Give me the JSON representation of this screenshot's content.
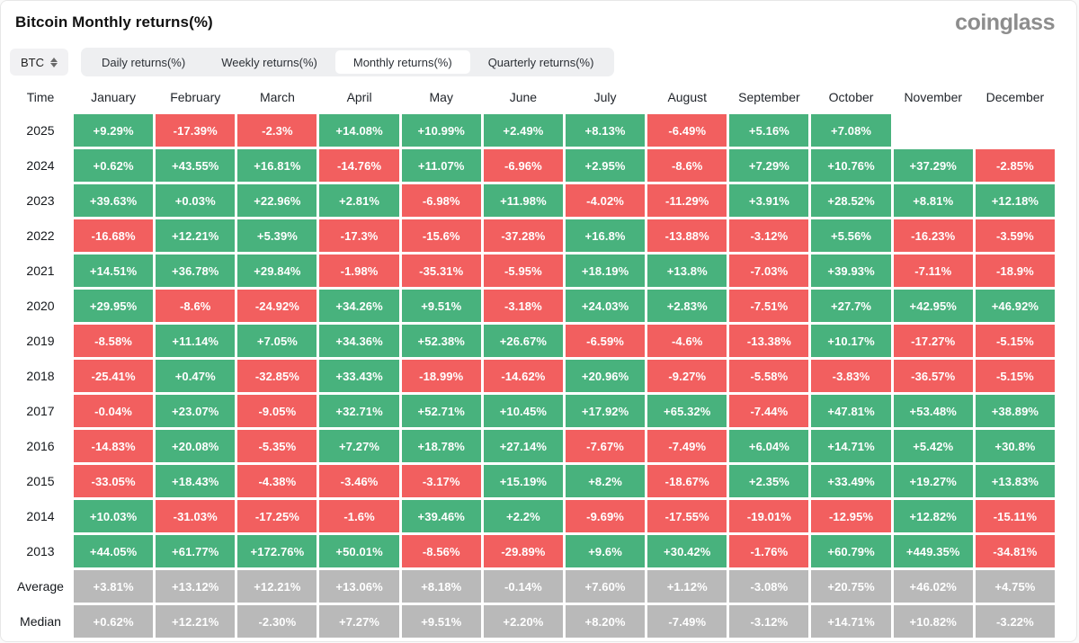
{
  "header": {
    "title": "Bitcoin Monthly returns(%)",
    "logo": "coinglass"
  },
  "controls": {
    "coin_selector": {
      "label": "BTC",
      "icon": "updown-chevron-icon"
    },
    "tabs": [
      {
        "label": "Daily returns(%)",
        "active": false
      },
      {
        "label": "Weekly returns(%)",
        "active": false
      },
      {
        "label": "Monthly returns(%)",
        "active": true
      },
      {
        "label": "Quarterly returns(%)",
        "active": false
      }
    ]
  },
  "colors": {
    "positive": "#48b27d",
    "negative": "#f25f5f",
    "neutral": "#b9b9b9"
  },
  "table": {
    "time_header": "Time",
    "columns": [
      "January",
      "February",
      "March",
      "April",
      "May",
      "June",
      "July",
      "August",
      "September",
      "October",
      "November",
      "December"
    ],
    "rows": [
      {
        "label": "2025",
        "summary": false,
        "cells": [
          "+9.29%",
          "-17.39%",
          "-2.3%",
          "+14.08%",
          "+10.99%",
          "+2.49%",
          "+8.13%",
          "-6.49%",
          "+5.16%",
          "+7.08%",
          null,
          null
        ]
      },
      {
        "label": "2024",
        "summary": false,
        "cells": [
          "+0.62%",
          "+43.55%",
          "+16.81%",
          "-14.76%",
          "+11.07%",
          "-6.96%",
          "+2.95%",
          "-8.6%",
          "+7.29%",
          "+10.76%",
          "+37.29%",
          "-2.85%"
        ]
      },
      {
        "label": "2023",
        "summary": false,
        "cells": [
          "+39.63%",
          "+0.03%",
          "+22.96%",
          "+2.81%",
          "-6.98%",
          "+11.98%",
          "-4.02%",
          "-11.29%",
          "+3.91%",
          "+28.52%",
          "+8.81%",
          "+12.18%"
        ]
      },
      {
        "label": "2022",
        "summary": false,
        "cells": [
          "-16.68%",
          "+12.21%",
          "+5.39%",
          "-17.3%",
          "-15.6%",
          "-37.28%",
          "+16.8%",
          "-13.88%",
          "-3.12%",
          "+5.56%",
          "-16.23%",
          "-3.59%"
        ]
      },
      {
        "label": "2021",
        "summary": false,
        "cells": [
          "+14.51%",
          "+36.78%",
          "+29.84%",
          "-1.98%",
          "-35.31%",
          "-5.95%",
          "+18.19%",
          "+13.8%",
          "-7.03%",
          "+39.93%",
          "-7.11%",
          "-18.9%"
        ]
      },
      {
        "label": "2020",
        "summary": false,
        "cells": [
          "+29.95%",
          "-8.6%",
          "-24.92%",
          "+34.26%",
          "+9.51%",
          "-3.18%",
          "+24.03%",
          "+2.83%",
          "-7.51%",
          "+27.7%",
          "+42.95%",
          "+46.92%"
        ]
      },
      {
        "label": "2019",
        "summary": false,
        "cells": [
          "-8.58%",
          "+11.14%",
          "+7.05%",
          "+34.36%",
          "+52.38%",
          "+26.67%",
          "-6.59%",
          "-4.6%",
          "-13.38%",
          "+10.17%",
          "-17.27%",
          "-5.15%"
        ]
      },
      {
        "label": "2018",
        "summary": false,
        "cells": [
          "-25.41%",
          "+0.47%",
          "-32.85%",
          "+33.43%",
          "-18.99%",
          "-14.62%",
          "+20.96%",
          "-9.27%",
          "-5.58%",
          "-3.83%",
          "-36.57%",
          "-5.15%"
        ]
      },
      {
        "label": "2017",
        "summary": false,
        "cells": [
          "-0.04%",
          "+23.07%",
          "-9.05%",
          "+32.71%",
          "+52.71%",
          "+10.45%",
          "+17.92%",
          "+65.32%",
          "-7.44%",
          "+47.81%",
          "+53.48%",
          "+38.89%"
        ]
      },
      {
        "label": "2016",
        "summary": false,
        "cells": [
          "-14.83%",
          "+20.08%",
          "-5.35%",
          "+7.27%",
          "+18.78%",
          "+27.14%",
          "-7.67%",
          "-7.49%",
          "+6.04%",
          "+14.71%",
          "+5.42%",
          "+30.8%"
        ]
      },
      {
        "label": "2015",
        "summary": false,
        "cells": [
          "-33.05%",
          "+18.43%",
          "-4.38%",
          "-3.46%",
          "-3.17%",
          "+15.19%",
          "+8.2%",
          "-18.67%",
          "+2.35%",
          "+33.49%",
          "+19.27%",
          "+13.83%"
        ]
      },
      {
        "label": "2014",
        "summary": false,
        "cells": [
          "+10.03%",
          "-31.03%",
          "-17.25%",
          "-1.6%",
          "+39.46%",
          "+2.2%",
          "-9.69%",
          "-17.55%",
          "-19.01%",
          "-12.95%",
          "+12.82%",
          "-15.11%"
        ]
      },
      {
        "label": "2013",
        "summary": false,
        "cells": [
          "+44.05%",
          "+61.77%",
          "+172.76%",
          "+50.01%",
          "-8.56%",
          "-29.89%",
          "+9.6%",
          "+30.42%",
          "-1.76%",
          "+60.79%",
          "+449.35%",
          "-34.81%"
        ]
      },
      {
        "label": "Average",
        "summary": true,
        "cells": [
          "+3.81%",
          "+13.12%",
          "+12.21%",
          "+13.06%",
          "+8.18%",
          "-0.14%",
          "+7.60%",
          "+1.12%",
          "-3.08%",
          "+20.75%",
          "+46.02%",
          "+4.75%"
        ]
      },
      {
        "label": "Median",
        "summary": true,
        "cells": [
          "+0.62%",
          "+12.21%",
          "-2.30%",
          "+7.27%",
          "+9.51%",
          "+2.20%",
          "+8.20%",
          "-7.49%",
          "-3.12%",
          "+14.71%",
          "+10.82%",
          "-3.22%"
        ]
      }
    ]
  }
}
